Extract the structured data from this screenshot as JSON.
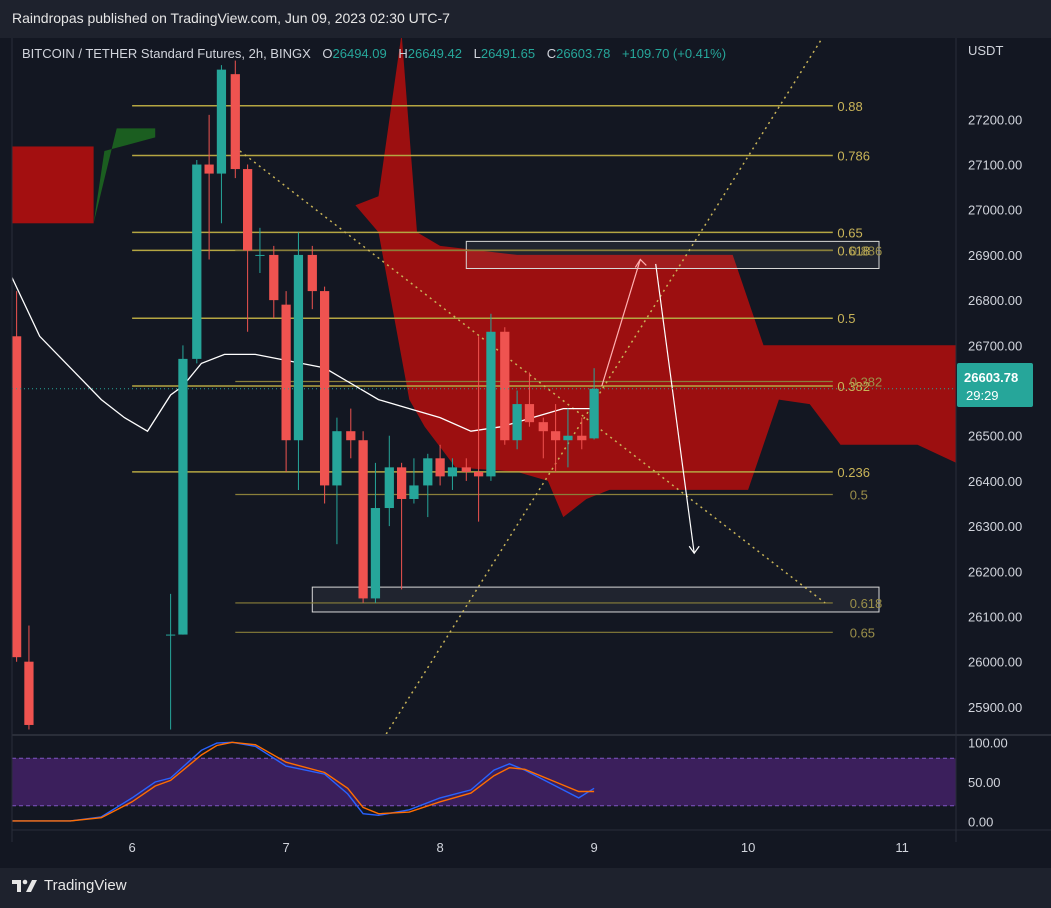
{
  "header": {
    "publish_line": "Raindropas published on TradingView.com, Jun 09, 2023 02:30 UTC-7"
  },
  "legend": {
    "symbol": "BITCOIN / TETHER Standard Futures, 2h, BINGX",
    "open_label": "O",
    "open": "26494.09",
    "high_label": "H",
    "high": "26649.42",
    "low_label": "L",
    "low": "26491.65",
    "close_label": "C",
    "close": "26603.78",
    "change": "+109.70 (+0.41%)"
  },
  "price_axis": {
    "currency": "USDT",
    "last_price": "26603.78",
    "countdown": "29:29"
  },
  "footer": {
    "brand": "TradingView"
  },
  "colors": {
    "background": "#131722",
    "up": "#26a69a",
    "down": "#ef5350",
    "cloud_bear": "#a30f10",
    "cloud_bull": "#1b5e20",
    "fib": "#b5a642",
    "ma": "#ffffff",
    "rsi_band": "#3b1f5c"
  },
  "chart_data": [
    {
      "type": "candlestick",
      "title": "BITCOIN / TETHER Standard Futures, 2h, BINGX",
      "ylim": [
        25840,
        27380
      ],
      "xlim": [
        5.22,
        11.35
      ],
      "x_ticks": [
        6,
        7,
        8,
        9,
        10,
        11
      ],
      "y_ticks": [
        25900,
        26000,
        26100,
        26200,
        26300,
        26400,
        26500,
        26600,
        26700,
        26800,
        26900,
        27000,
        27100,
        27200
      ],
      "last_price": 26603.78,
      "candles": [
        [
          5.25,
          26720,
          26820,
          26000,
          26010
        ],
        [
          5.33,
          26000,
          26080,
          25850,
          25860
        ],
        [
          6.25,
          26060,
          26150,
          25850,
          26060
        ],
        [
          6.33,
          26060,
          26700,
          26060,
          26670
        ],
        [
          6.42,
          26670,
          27110,
          26660,
          27100
        ],
        [
          6.5,
          27100,
          27210,
          26890,
          27080
        ],
        [
          6.58,
          27080,
          27320,
          26970,
          27310
        ],
        [
          6.67,
          27300,
          27330,
          27070,
          27090
        ],
        [
          6.75,
          27090,
          27100,
          26730,
          26910
        ],
        [
          6.83,
          26900,
          26960,
          26860,
          26900
        ],
        [
          6.92,
          26900,
          26920,
          26760,
          26800
        ],
        [
          7.0,
          26790,
          26820,
          26420,
          26490
        ],
        [
          7.08,
          26490,
          26950,
          26380,
          26900
        ],
        [
          7.17,
          26900,
          26920,
          26780,
          26820
        ],
        [
          7.25,
          26820,
          26830,
          26350,
          26390
        ],
        [
          7.33,
          26390,
          26540,
          26260,
          26510
        ],
        [
          7.42,
          26510,
          26560,
          26450,
          26490
        ],
        [
          7.5,
          26490,
          26510,
          26130,
          26140
        ],
        [
          7.58,
          26140,
          26440,
          26130,
          26340
        ],
        [
          7.67,
          26340,
          26500,
          26300,
          26430
        ],
        [
          7.75,
          26430,
          26440,
          26160,
          26360
        ],
        [
          7.83,
          26360,
          26450,
          26350,
          26390
        ],
        [
          7.92,
          26390,
          26460,
          26320,
          26450
        ],
        [
          8.0,
          26450,
          26480,
          26390,
          26410
        ],
        [
          8.08,
          26410,
          26450,
          26380,
          26430
        ],
        [
          8.17,
          26430,
          26450,
          26400,
          26420
        ],
        [
          8.25,
          26420,
          26720,
          26310,
          26410
        ],
        [
          8.33,
          26410,
          26770,
          26400,
          26730
        ],
        [
          8.42,
          26730,
          26740,
          26480,
          26490
        ],
        [
          8.5,
          26490,
          26600,
          26470,
          26570
        ],
        [
          8.58,
          26570,
          26640,
          26520,
          26530
        ],
        [
          8.67,
          26530,
          26540,
          26450,
          26510
        ],
        [
          8.75,
          26510,
          26570,
          26420,
          26490
        ],
        [
          8.83,
          26490,
          26560,
          26430,
          26500
        ],
        [
          8.92,
          26500,
          26540,
          26470,
          26490
        ],
        [
          9.0,
          26494.09,
          26649.42,
          26491.65,
          26603.78
        ]
      ],
      "moving_average": [
        [
          5.22,
          26850
        ],
        [
          5.4,
          26720
        ],
        [
          5.6,
          26650
        ],
        [
          5.8,
          26580
        ],
        [
          5.95,
          26540
        ],
        [
          6.1,
          26510
        ],
        [
          6.25,
          26590
        ],
        [
          6.33,
          26610
        ],
        [
          6.45,
          26660
        ],
        [
          6.6,
          26680
        ],
        [
          6.8,
          26680
        ],
        [
          6.95,
          26670
        ],
        [
          7.1,
          26660
        ],
        [
          7.25,
          26650
        ],
        [
          7.4,
          26620
        ],
        [
          7.6,
          26580
        ],
        [
          7.8,
          26560
        ],
        [
          8.0,
          26540
        ],
        [
          8.2,
          26510
        ],
        [
          8.4,
          26520
        ],
        [
          8.6,
          26540
        ],
        [
          8.8,
          26560
        ],
        [
          9.0,
          26560
        ]
      ],
      "ichimoku_cloud": {
        "upper": [
          [
            5.22,
            26970
          ],
          [
            5.55,
            26970
          ],
          [
            5.8,
            26980
          ],
          [
            6.1,
            27180
          ],
          [
            6.6,
            27300
          ],
          [
            7.0,
            27130
          ],
          [
            7.2,
            27030
          ],
          [
            7.45,
            27010
          ],
          [
            7.6,
            27030
          ],
          [
            7.75,
            27390
          ],
          [
            7.85,
            26950
          ],
          [
            8.0,
            26920
          ],
          [
            8.5,
            26900
          ],
          [
            9.0,
            26900
          ],
          [
            9.5,
            26900
          ],
          [
            9.9,
            26900
          ],
          [
            10.1,
            26700
          ],
          [
            10.3,
            26700
          ],
          [
            11.35,
            26700
          ]
        ],
        "lower": [
          [
            5.22,
            26970
          ],
          [
            5.55,
            26970
          ],
          [
            5.8,
            26980
          ],
          [
            6.1,
            27180
          ],
          [
            6.6,
            27300
          ],
          [
            7.0,
            27130
          ],
          [
            7.2,
            27030
          ],
          [
            7.45,
            27010
          ],
          [
            7.6,
            26950
          ],
          [
            7.8,
            26580
          ],
          [
            7.9,
            26520
          ],
          [
            8.1,
            26430
          ],
          [
            8.5,
            26420
          ],
          [
            8.7,
            26400
          ],
          [
            8.8,
            26320
          ],
          [
            8.95,
            26360
          ],
          [
            9.1,
            26380
          ],
          [
            9.5,
            26380
          ],
          [
            10.0,
            26380
          ],
          [
            10.2,
            26580
          ],
          [
            10.4,
            26570
          ],
          [
            10.6,
            26480
          ],
          [
            10.8,
            26480
          ],
          [
            11.1,
            26480
          ],
          [
            11.35,
            26440
          ]
        ]
      },
      "fib_levels_left": [
        {
          "label": "0.88",
          "price": 27230
        },
        {
          "label": "0.786",
          "price": 27120
        },
        {
          "label": "0.65",
          "price": 26950
        },
        {
          "label": "0.618",
          "price": 26910
        },
        {
          "label": "0.5",
          "price": 26760
        },
        {
          "label": "0.382",
          "price": 26610
        },
        {
          "label": "0.236",
          "price": 26420
        }
      ],
      "fib_levels_right": [
        {
          "label": "0.886",
          "price": 26910
        },
        {
          "label": "0.382",
          "price": 26620
        },
        {
          "label": "0.5",
          "price": 26370
        },
        {
          "label": "0.618",
          "price": 26130
        },
        {
          "label": "0.65",
          "price": 26065
        }
      ],
      "zones": [
        {
          "x0": 8.17,
          "x1": 10.85,
          "y0": 26870,
          "y1": 26930
        },
        {
          "x0": 7.17,
          "x1": 10.85,
          "y0": 26110,
          "y1": 26165
        }
      ],
      "projection_path": [
        [
          9.05,
          26610
        ],
        [
          9.3,
          26890
        ],
        [
          9.4,
          26880
        ],
        [
          9.65,
          26240
        ]
      ],
      "trendlines": [
        {
          "from": [
            6.7,
            27130
          ],
          "to": [
            10.5,
            26130
          ]
        },
        {
          "from": [
            7.65,
            25840
          ],
          "to": [
            10.5,
            27390
          ]
        }
      ]
    },
    {
      "type": "line",
      "title": "",
      "ylim": [
        -8,
        108
      ],
      "y_ticks": [
        0.0,
        50.0,
        100.0
      ],
      "y_tick_labels": [
        "0.00",
        "50.00",
        "100.00"
      ],
      "band": [
        20,
        80
      ],
      "series": [
        {
          "color": "#2962ff",
          "points": [
            [
              5.22,
              1
            ],
            [
              5.6,
              1
            ],
            [
              5.8,
              6
            ],
            [
              6.0,
              30
            ],
            [
              6.15,
              50
            ],
            [
              6.25,
              55
            ],
            [
              6.45,
              90
            ],
            [
              6.55,
              99
            ],
            [
              6.65,
              100
            ],
            [
              6.8,
              95
            ],
            [
              7.0,
              70
            ],
            [
              7.25,
              60
            ],
            [
              7.4,
              35
            ],
            [
              7.5,
              10
            ],
            [
              7.6,
              8
            ],
            [
              7.8,
              15
            ],
            [
              8.0,
              30
            ],
            [
              8.2,
              40
            ],
            [
              8.35,
              65
            ],
            [
              8.45,
              73
            ],
            [
              8.55,
              65
            ],
            [
              8.75,
              45
            ],
            [
              8.9,
              30
            ],
            [
              9.0,
              42
            ]
          ]
        },
        {
          "color": "#ff6d00",
          "points": [
            [
              5.22,
              1
            ],
            [
              5.6,
              1
            ],
            [
              5.8,
              5
            ],
            [
              6.0,
              25
            ],
            [
              6.15,
              45
            ],
            [
              6.25,
              52
            ],
            [
              6.45,
              84
            ],
            [
              6.55,
              96
            ],
            [
              6.65,
              100
            ],
            [
              6.8,
              97
            ],
            [
              7.0,
              75
            ],
            [
              7.25,
              62
            ],
            [
              7.4,
              42
            ],
            [
              7.5,
              18
            ],
            [
              7.6,
              10
            ],
            [
              7.8,
              12
            ],
            [
              8.0,
              25
            ],
            [
              8.2,
              36
            ],
            [
              8.35,
              58
            ],
            [
              8.45,
              68
            ],
            [
              8.55,
              66
            ],
            [
              8.75,
              50
            ],
            [
              8.9,
              38
            ],
            [
              9.0,
              38
            ]
          ]
        }
      ]
    }
  ]
}
